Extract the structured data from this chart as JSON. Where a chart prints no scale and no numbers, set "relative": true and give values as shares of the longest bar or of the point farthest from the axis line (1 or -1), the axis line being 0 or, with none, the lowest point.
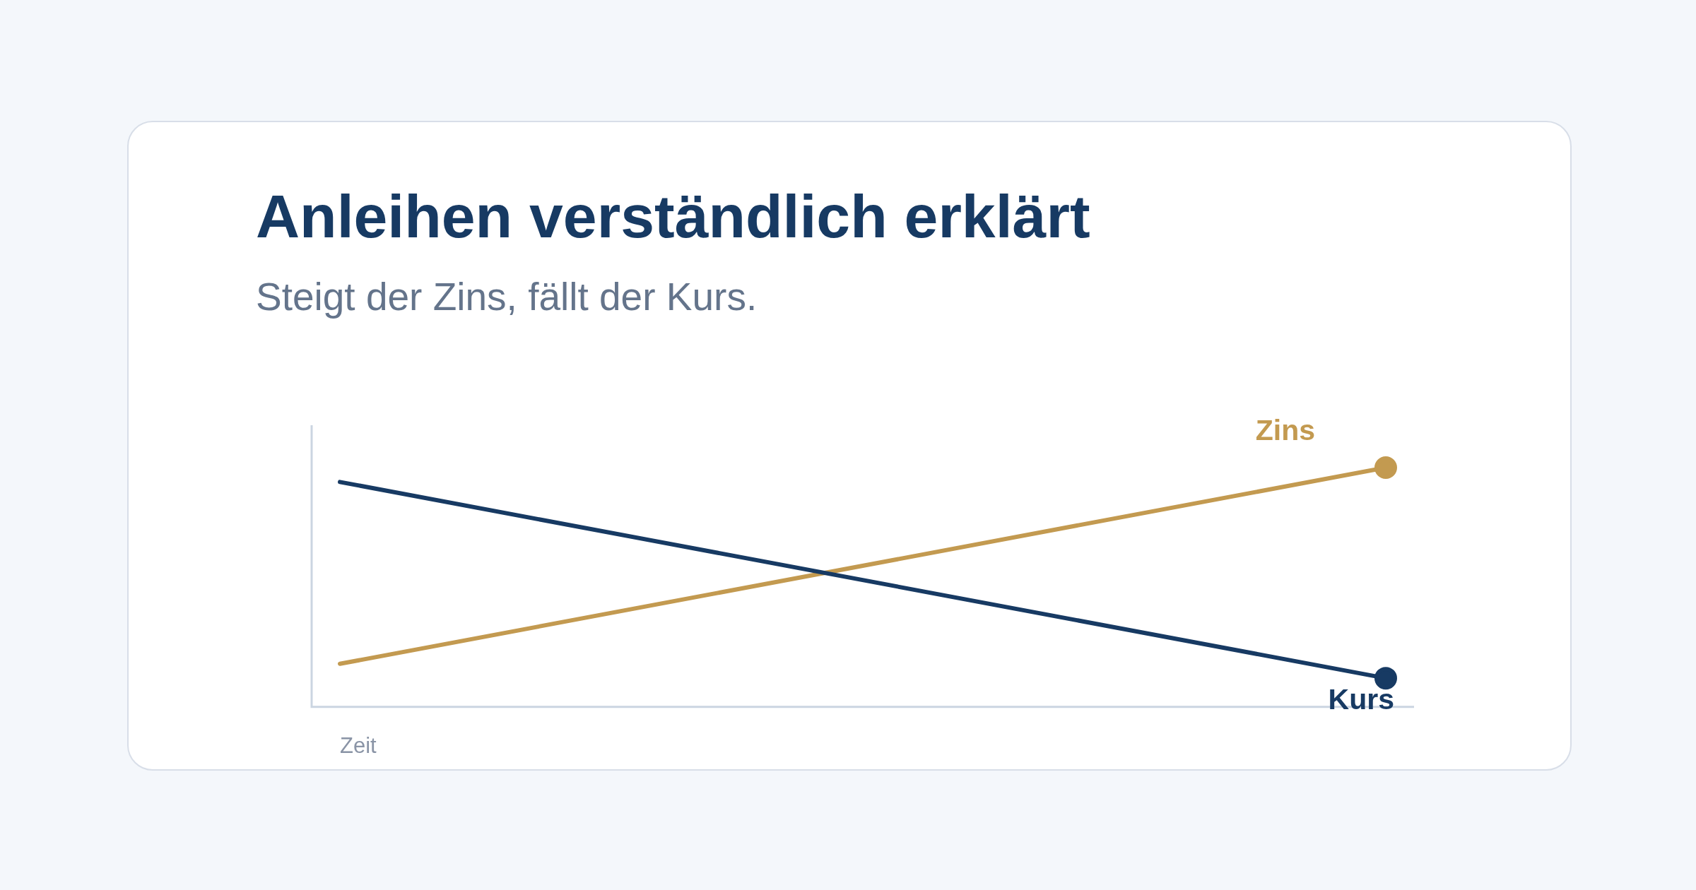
{
  "chart_data": {
    "type": "line",
    "title": "Anleihen verständlich erklärt",
    "subtitle": "Steigt der Zins, fällt der Kurs.",
    "xlabel": "Zeit",
    "relative": true,
    "categories": [
      null,
      null
    ],
    "series": [
      {
        "name": "Kurs",
        "color": "#173a63",
        "values": [
          0.94,
          0.12
        ]
      },
      {
        "name": "Zins",
        "color": "#c39a50",
        "values": [
          0.18,
          1
        ]
      }
    ],
    "legend": false,
    "grid": false,
    "marker": "circle",
    "line_style": "solid"
  }
}
